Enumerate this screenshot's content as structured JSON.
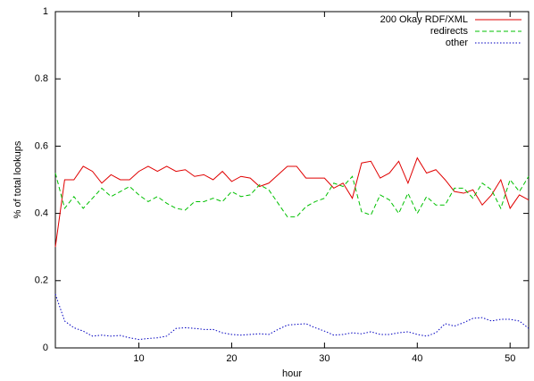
{
  "chart_data": {
    "type": "line",
    "xlabel": "hour",
    "ylabel": "% of total lookups",
    "x": [
      1,
      2,
      3,
      4,
      5,
      6,
      7,
      8,
      9,
      10,
      11,
      12,
      13,
      14,
      15,
      16,
      17,
      18,
      19,
      20,
      21,
      22,
      23,
      24,
      25,
      26,
      27,
      28,
      29,
      30,
      31,
      32,
      33,
      34,
      35,
      36,
      37,
      38,
      39,
      40,
      41,
      42,
      43,
      44,
      45,
      46,
      47,
      48,
      49,
      50,
      51,
      52
    ],
    "xlim": [
      1,
      52
    ],
    "xticks": [
      10,
      20,
      30,
      40,
      50
    ],
    "ylim": [
      0,
      1
    ],
    "yticks": [
      0,
      0.2,
      0.4,
      0.6,
      0.8,
      1
    ],
    "grid": false,
    "legend": "top-right",
    "series": [
      {
        "name": "200 Okay RDF/XML",
        "color": "#e00000",
        "style": "solid",
        "values": [
          0.3,
          0.5,
          0.5,
          0.54,
          0.525,
          0.49,
          0.515,
          0.5,
          0.5,
          0.525,
          0.54,
          0.525,
          0.54,
          0.525,
          0.53,
          0.51,
          0.515,
          0.5,
          0.525,
          0.495,
          0.51,
          0.505,
          0.48,
          0.49,
          0.515,
          0.54,
          0.54,
          0.505,
          0.505,
          0.505,
          0.475,
          0.49,
          0.445,
          0.55,
          0.555,
          0.505,
          0.52,
          0.555,
          0.49,
          0.565,
          0.52,
          0.53,
          0.5,
          0.465,
          0.46,
          0.47,
          0.425,
          0.455,
          0.5,
          0.415,
          0.455,
          0.44
        ]
      },
      {
        "name": "redirects",
        "color": "#00c000",
        "style": "dashed",
        "values": [
          0.52,
          0.415,
          0.45,
          0.415,
          0.445,
          0.475,
          0.45,
          0.465,
          0.48,
          0.455,
          0.435,
          0.45,
          0.43,
          0.415,
          0.41,
          0.435,
          0.435,
          0.445,
          0.435,
          0.465,
          0.45,
          0.455,
          0.485,
          0.47,
          0.43,
          0.39,
          0.39,
          0.42,
          0.435,
          0.445,
          0.49,
          0.48,
          0.51,
          0.405,
          0.395,
          0.455,
          0.44,
          0.4,
          0.46,
          0.4,
          0.45,
          0.425,
          0.425,
          0.475,
          0.475,
          0.445,
          0.49,
          0.47,
          0.415,
          0.5,
          0.465,
          0.51
        ]
      },
      {
        "name": "other",
        "color": "#0000c0",
        "style": "dotted",
        "values": [
          0.16,
          0.08,
          0.06,
          0.05,
          0.035,
          0.038,
          0.035,
          0.037,
          0.03,
          0.025,
          0.028,
          0.03,
          0.035,
          0.058,
          0.06,
          0.058,
          0.055,
          0.055,
          0.045,
          0.04,
          0.038,
          0.04,
          0.042,
          0.04,
          0.055,
          0.068,
          0.07,
          0.072,
          0.06,
          0.05,
          0.038,
          0.04,
          0.045,
          0.042,
          0.048,
          0.04,
          0.04,
          0.045,
          0.048,
          0.04,
          0.035,
          0.045,
          0.072,
          0.065,
          0.075,
          0.088,
          0.09,
          0.08,
          0.085,
          0.085,
          0.08,
          0.058
        ]
      }
    ]
  }
}
